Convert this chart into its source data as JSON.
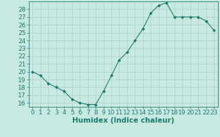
{
  "x": [
    0,
    1,
    2,
    3,
    4,
    5,
    6,
    7,
    8,
    9,
    10,
    11,
    12,
    13,
    14,
    15,
    16,
    17,
    18,
    19,
    20,
    21,
    22,
    23
  ],
  "y": [
    20.0,
    19.5,
    18.5,
    18.0,
    17.5,
    16.5,
    16.0,
    15.8,
    15.8,
    17.5,
    19.5,
    21.5,
    22.5,
    24.0,
    25.5,
    27.5,
    28.5,
    28.8,
    27.0,
    27.0,
    27.0,
    27.0,
    26.5,
    25.3
  ],
  "xlabel": "Humidex (Indice chaleur)",
  "xlim": [
    -0.5,
    23.5
  ],
  "ylim": [
    15.5,
    29.0
  ],
  "yticks": [
    16,
    17,
    18,
    19,
    20,
    21,
    22,
    23,
    24,
    25,
    26,
    27,
    28
  ],
  "xticks": [
    0,
    1,
    2,
    3,
    4,
    5,
    6,
    7,
    8,
    9,
    10,
    11,
    12,
    13,
    14,
    15,
    16,
    17,
    18,
    19,
    20,
    21,
    22,
    23
  ],
  "line_color": "#1a7a6e",
  "marker": "D",
  "marker_size": 2.0,
  "bg_color": "#c8e8e2",
  "grid_color": "#b0cec8",
  "axis_color": "#1a7a6e",
  "label_color": "#1a7a6e",
  "tick_fontsize": 6.5,
  "xlabel_fontsize": 7.5
}
